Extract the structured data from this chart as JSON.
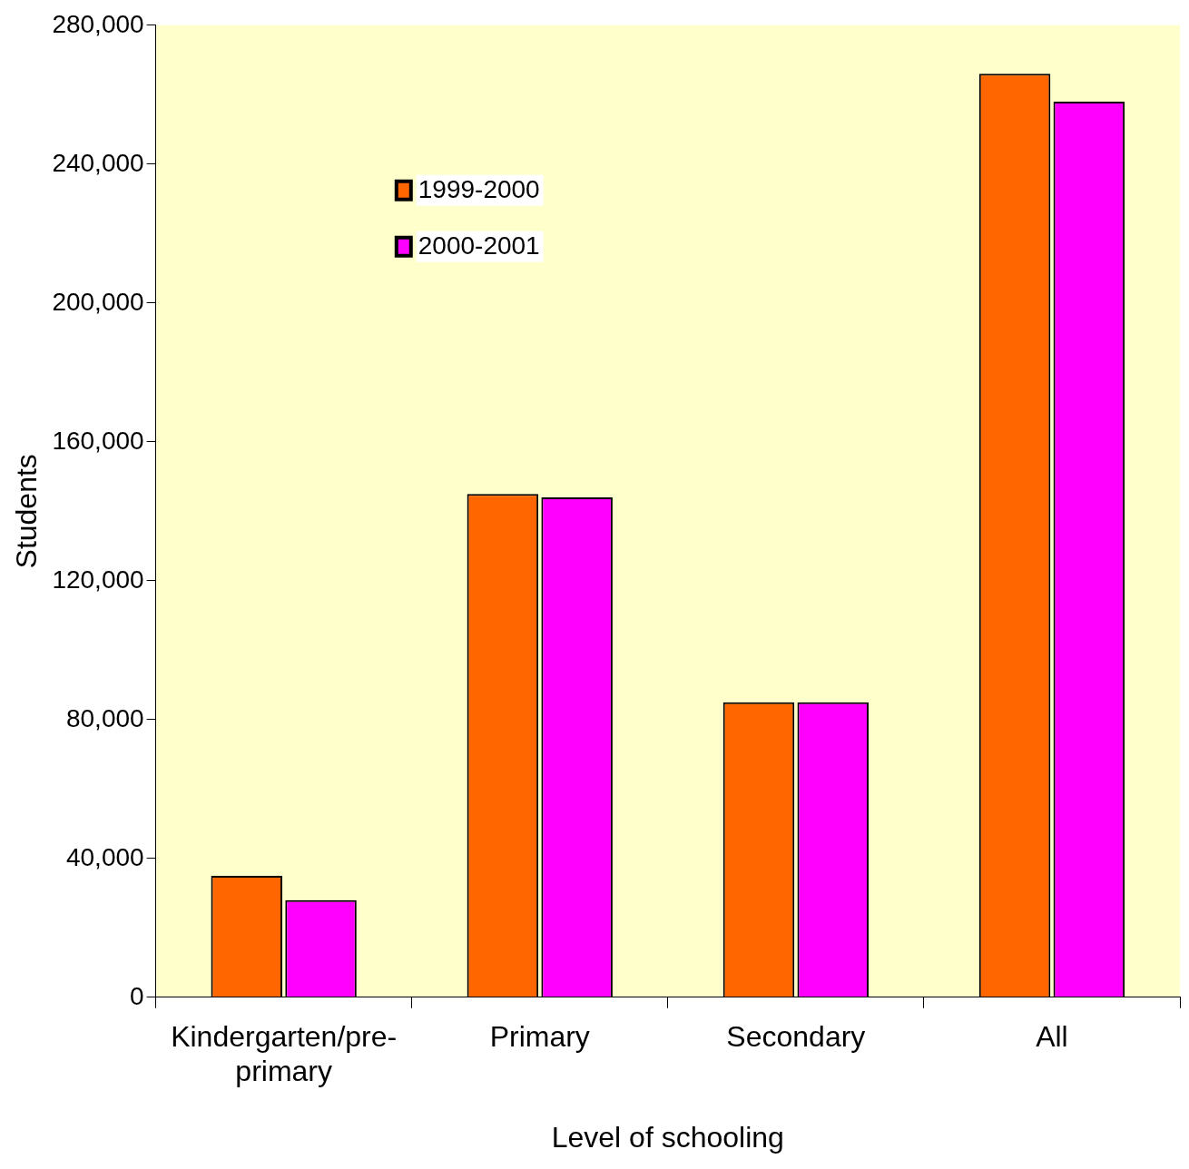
{
  "chart_data": {
    "type": "bar",
    "xlabel": "Level of schooling",
    "ylabel": "Students",
    "categories": [
      "Kindergarten/pre-primary",
      "Primary",
      "Secondary",
      "All"
    ],
    "series": [
      {
        "name": "1999-2000",
        "color": "#ff6600",
        "values": [
          35000,
          145000,
          85000,
          266000
        ]
      },
      {
        "name": "2000-2001",
        "color": "#ff00ff",
        "values": [
          28000,
          144000,
          85000,
          258000
        ]
      }
    ],
    "ylim": [
      0,
      280000
    ],
    "yticks": [
      {
        "value": 0,
        "label": "0"
      },
      {
        "value": 40000,
        "label": "40,000"
      },
      {
        "value": 80000,
        "label": "80,000"
      },
      {
        "value": 120000,
        "label": "120,000"
      },
      {
        "value": 160000,
        "label": "160,000"
      },
      {
        "value": 200000,
        "label": "200,000"
      },
      {
        "value": 240000,
        "label": "240,000"
      },
      {
        "value": 280000,
        "label": "280,000"
      }
    ],
    "grid": false,
    "legend": "top left"
  }
}
